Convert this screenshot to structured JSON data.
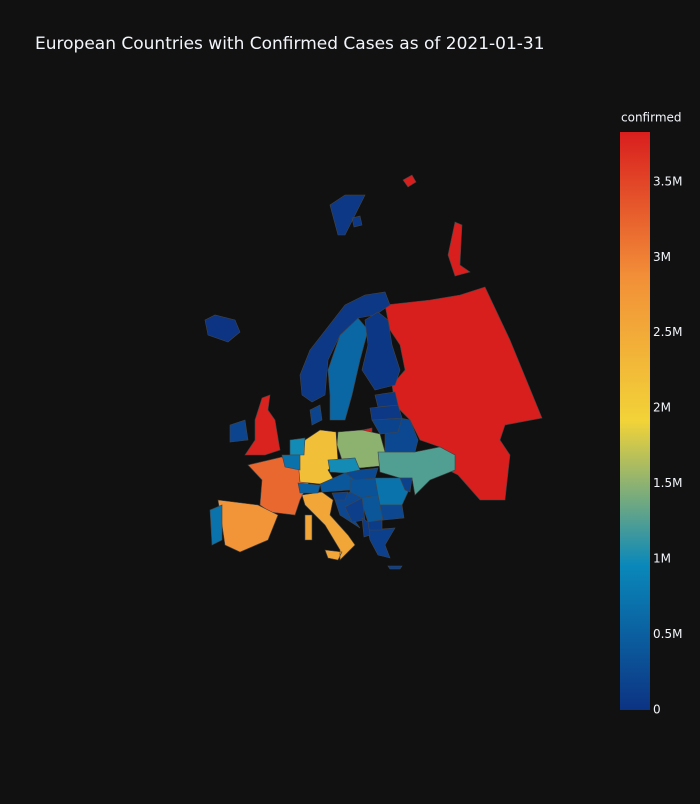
{
  "chart_data": {
    "type": "choropleth",
    "title": "European Countries with Confirmed Cases as of 2021-01-31",
    "colorbar_title": "confirmed",
    "colorscale": [
      [
        0,
        "#0c3383"
      ],
      [
        0.25,
        "#0a88ba"
      ],
      [
        0.5,
        "#f2d338"
      ],
      [
        0.75,
        "#f28f38"
      ],
      [
        1,
        "#d91e1e"
      ]
    ],
    "zlim": [
      0,
      3830000
    ],
    "zticks": [
      0,
      {
        "value": 500000,
        "label": "0.5M"
      },
      {
        "value": 1000000,
        "label": "1M"
      },
      {
        "value": 1500000,
        "label": "1.5M"
      },
      {
        "value": 2000000,
        "label": "2M"
      },
      {
        "value": 2500000,
        "label": "2.5M"
      },
      {
        "value": 3000000,
        "label": "3M"
      },
      {
        "value": 3500000,
        "label": "3.5M"
      }
    ],
    "values": [
      3830000,
      3800000,
      3200000,
      2800000,
      2550000,
      2200000,
      1500000,
      1250000,
      990000,
      1000000,
      720000,
      700000,
      720000,
      570000,
      520000,
      410000,
      360000,
      390000,
      260000,
      240000,
      200000,
      220000,
      230000,
      150000,
      200000,
      180000,
      160000,
      160000,
      120000,
      60000,
      40000,
      60000,
      40000,
      6000,
      90000,
      78000
    ]
  }
}
